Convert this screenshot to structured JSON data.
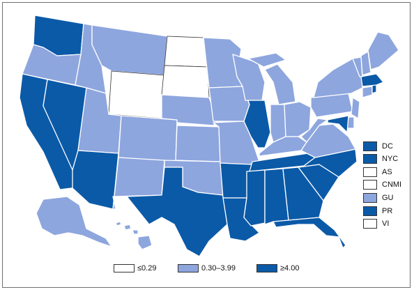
{
  "colors": {
    "low": "#ffffff",
    "mid": "#8ea6de",
    "high": "#0b5aa8",
    "border": "#6e6e6e"
  },
  "legend": [
    {
      "label": "≤0.29",
      "class": "low"
    },
    {
      "label": "0.30–3.99",
      "class": "mid"
    },
    {
      "label": "≥4.00",
      "class": "high"
    }
  ],
  "territories": [
    {
      "label": "DC",
      "class": "high"
    },
    {
      "label": "NYC",
      "class": "high"
    },
    {
      "label": "AS",
      "class": "low"
    },
    {
      "label": "CNMI",
      "class": "low"
    },
    {
      "label": "GU",
      "class": "mid"
    },
    {
      "label": "PR",
      "class": "high"
    },
    {
      "label": "VI",
      "class": "low"
    }
  ],
  "states": {
    "WA": "high",
    "OR": "mid",
    "CA": "high",
    "NV": "high",
    "ID": "mid",
    "MT": "mid",
    "WY": "low",
    "UT": "mid",
    "AZ": "high",
    "CO": "mid",
    "NM": "mid",
    "ND": "low",
    "SD": "low",
    "NE": "mid",
    "KS": "mid",
    "OK": "mid",
    "TX": "high",
    "MN": "mid",
    "IA": "mid",
    "MO": "mid",
    "AR": "high",
    "LA": "high",
    "WI": "mid",
    "IL": "high",
    "MI": "mid",
    "IN": "mid",
    "OH": "mid",
    "KY": "mid",
    "TN": "high",
    "MS": "high",
    "AL": "high",
    "GA": "high",
    "FL": "high",
    "SC": "high",
    "NC": "high",
    "VA": "mid",
    "WV": "mid",
    "PA": "mid",
    "NY": "mid",
    "VT": "mid",
    "NH": "mid",
    "ME": "mid",
    "MA": "high",
    "RI": "high",
    "CT": "mid",
    "NJ": "mid",
    "DE": "mid",
    "MD": "high",
    "AK": "mid",
    "HI": "mid"
  }
}
